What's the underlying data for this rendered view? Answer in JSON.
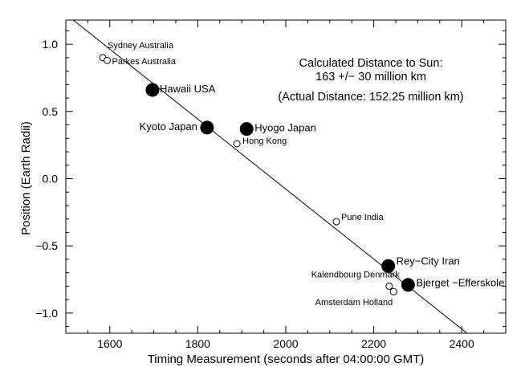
{
  "chart_data": {
    "type": "scatter",
    "title": "",
    "xlabel": "Timing Measurement (seconds after 04:00:00 GMT)",
    "ylabel": "Position (Earth Radii)",
    "xlim": [
      1500,
      2500
    ],
    "ylim": [
      -1.15,
      1.18
    ],
    "x_ticks": [
      1600,
      1800,
      2000,
      2200,
      2400
    ],
    "y_ticks": [
      -1.0,
      -0.5,
      0.0,
      0.5,
      1.0
    ],
    "x_tick_labels": [
      "1600",
      "1800",
      "2000",
      "2200",
      "2400"
    ],
    "y_tick_labels": [
      "−1.0",
      "−0.5",
      "0.0",
      "0.5",
      "1.0"
    ],
    "fit_line": {
      "x": [
        1517,
        2412
      ],
      "y": [
        1.18,
        -1.15
      ]
    },
    "points": [
      {
        "name": "Sydney Australia",
        "x": 1584,
        "y": 0.9,
        "size": "small"
      },
      {
        "name": "Parkes Australia",
        "x": 1594,
        "y": 0.88,
        "size": "small"
      },
      {
        "name": "Hawaii USA",
        "x": 1697,
        "y": 0.66,
        "size": "large"
      },
      {
        "name": "Kyoto Japan",
        "x": 1821,
        "y": 0.38,
        "size": "large"
      },
      {
        "name": "Hyogo Japan",
        "x": 1911,
        "y": 0.37,
        "size": "large"
      },
      {
        "name": "Hong Kong",
        "x": 1889,
        "y": 0.26,
        "size": "small"
      },
      {
        "name": "Pune India",
        "x": 2115,
        "y": -0.32,
        "size": "small"
      },
      {
        "name": "Rey−City Iran",
        "x": 2233,
        "y": -0.65,
        "size": "large"
      },
      {
        "name": "Kalendbourg Denmark",
        "x": 2235,
        "y": -0.8,
        "size": "small"
      },
      {
        "name": "Amsterdam Holland",
        "x": 2245,
        "y": -0.84,
        "size": "small"
      },
      {
        "name": "Bjerget −Efferskole",
        "x": 2278,
        "y": -0.79,
        "size": "large"
      }
    ],
    "annotations": [
      "Calculated Distance to Sun:",
      "163 +/− 30 million km",
      "(Actual Distance: 152.25 million km)"
    ]
  }
}
